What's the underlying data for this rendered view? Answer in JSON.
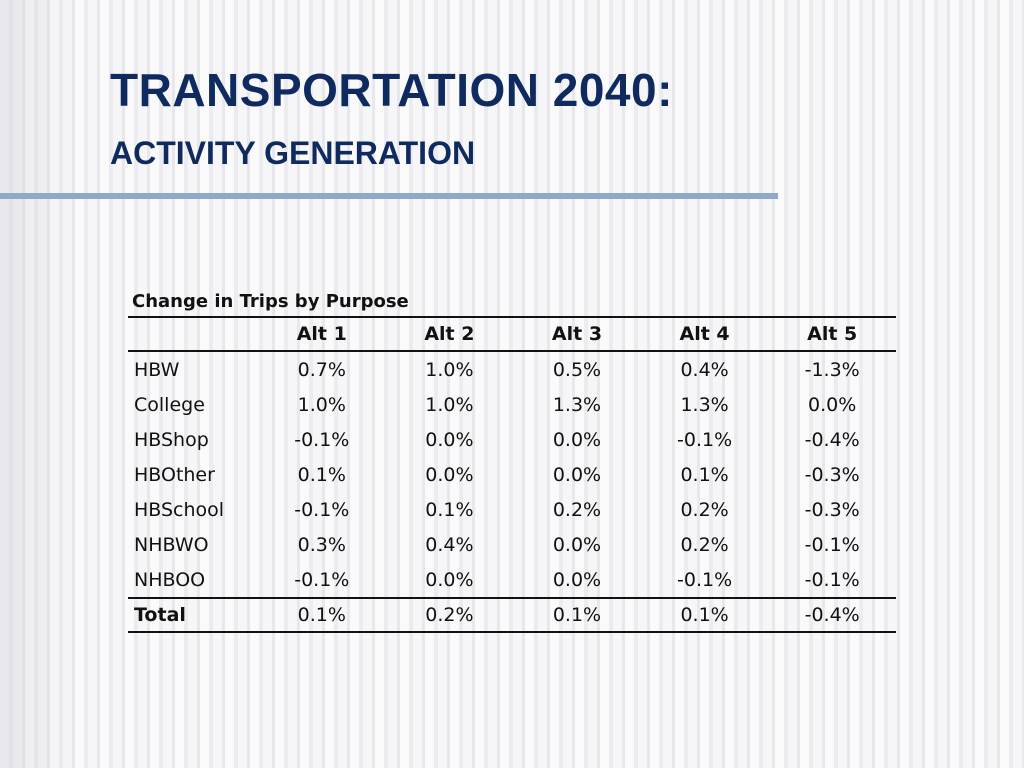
{
  "slide": {
    "title": "TRANSPORTATION 2040:",
    "subtitle": "ACTIVITY GENERATION"
  },
  "table": {
    "caption": "Change in Trips by Purpose",
    "columns": [
      "",
      "Alt 1",
      "Alt 2",
      "Alt 3",
      "Alt 4",
      "Alt 5"
    ],
    "rows": [
      {
        "label": "HBW",
        "values": [
          "0.7%",
          "1.0%",
          "0.5%",
          "0.4%",
          "-1.3%"
        ]
      },
      {
        "label": "College",
        "values": [
          "1.0%",
          "1.0%",
          "1.3%",
          "1.3%",
          "0.0%"
        ]
      },
      {
        "label": "HBShop",
        "values": [
          "-0.1%",
          "0.0%",
          "0.0%",
          "-0.1%",
          "-0.4%"
        ]
      },
      {
        "label": "HBOther",
        "values": [
          "0.1%",
          "0.0%",
          "0.0%",
          "0.1%",
          "-0.3%"
        ]
      },
      {
        "label": "HBSchool",
        "values": [
          "-0.1%",
          "0.1%",
          "0.2%",
          "0.2%",
          "-0.3%"
        ]
      },
      {
        "label": "NHBWO",
        "values": [
          "0.3%",
          "0.4%",
          "0.0%",
          "0.2%",
          "-0.1%"
        ]
      },
      {
        "label": "NHBOO",
        "values": [
          "-0.1%",
          "0.0%",
          "0.0%",
          "-0.1%",
          "-0.1%"
        ]
      }
    ],
    "total": {
      "label": "Total",
      "values": [
        "0.1%",
        "0.2%",
        "0.1%",
        "0.1%",
        "-0.4%"
      ]
    }
  },
  "colors": {
    "title": "#0f2a5e",
    "rule": "#8fa9c9"
  }
}
